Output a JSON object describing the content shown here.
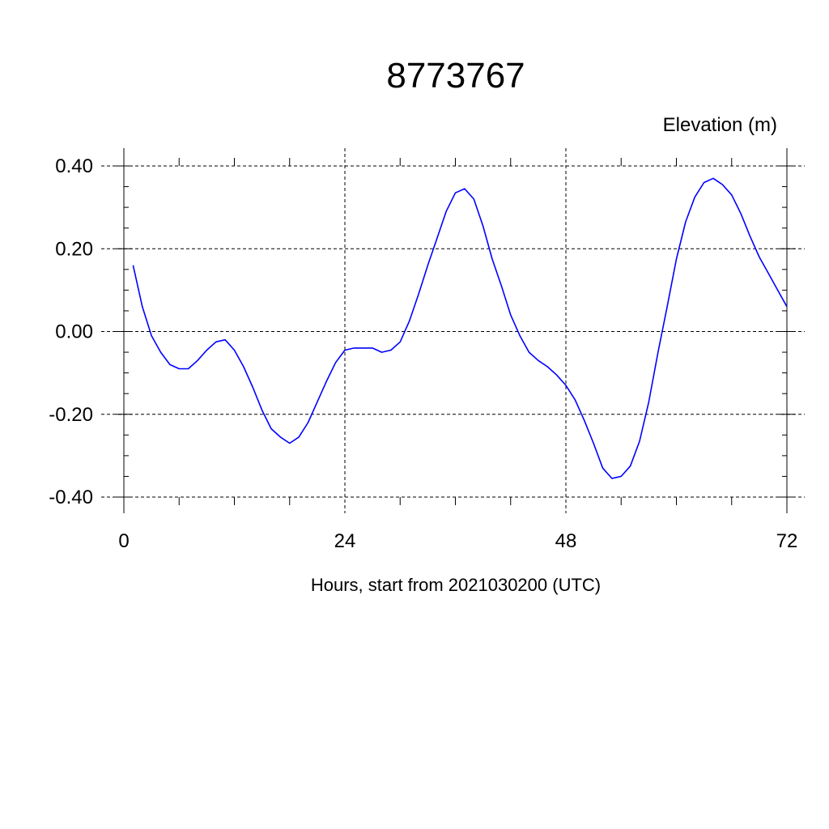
{
  "chart_data": {
    "type": "line",
    "title": "8773767",
    "ylabel": "Elevation (m)",
    "xlabel": "Hours, start from 2021030200 (UTC)",
    "xlim": [
      0,
      72
    ],
    "ylim": [
      -0.4,
      0.4
    ],
    "x_ticks": [
      0,
      24,
      48,
      72
    ],
    "x_tick_labels": [
      "0",
      "24",
      "48",
      "72"
    ],
    "y_ticks": [
      0.4,
      0.2,
      0.0,
      -0.2,
      -0.4
    ],
    "y_tick_labels": [
      "0.40",
      "0.20",
      "0.00",
      "-0.20",
      "-0.40"
    ],
    "grid": "dashed",
    "line_color": "#0000ff",
    "series": [
      {
        "x": [
          1,
          2,
          3,
          4,
          5,
          6,
          7,
          8,
          9,
          10,
          11,
          12,
          13,
          14,
          15,
          16,
          17,
          18,
          19,
          20,
          21,
          22,
          23,
          24,
          25,
          26,
          27,
          28,
          29,
          30,
          31,
          32,
          33,
          34,
          35,
          36,
          37,
          38,
          39,
          40,
          41,
          42,
          43,
          44,
          45,
          46,
          47,
          48,
          49,
          50,
          51,
          52,
          53,
          54,
          55,
          56,
          57,
          58,
          59,
          60,
          61,
          62,
          63,
          64,
          65,
          66,
          67,
          68,
          69,
          70,
          71,
          72
        ],
        "y": [
          0.16,
          0.06,
          -0.01,
          -0.05,
          -0.08,
          -0.09,
          -0.09,
          -0.07,
          -0.045,
          -0.025,
          -0.02,
          -0.045,
          -0.085,
          -0.135,
          -0.19,
          -0.235,
          -0.255,
          -0.27,
          -0.255,
          -0.22,
          -0.17,
          -0.12,
          -0.075,
          -0.045,
          -0.04,
          -0.04,
          -0.04,
          -0.05,
          -0.045,
          -0.025,
          0.025,
          0.09,
          0.16,
          0.225,
          0.29,
          0.335,
          0.345,
          0.32,
          0.255,
          0.175,
          0.11,
          0.04,
          -0.01,
          -0.05,
          -0.07,
          -0.085,
          -0.105,
          -0.13,
          -0.165,
          -0.215,
          -0.27,
          -0.33,
          -0.355,
          -0.35,
          -0.325,
          -0.265,
          -0.17,
          -0.05,
          0.06,
          0.175,
          0.265,
          0.325,
          0.36,
          0.37,
          0.355,
          0.33,
          0.285,
          0.23,
          0.18,
          0.14,
          0.1,
          0.06
        ]
      }
    ]
  }
}
